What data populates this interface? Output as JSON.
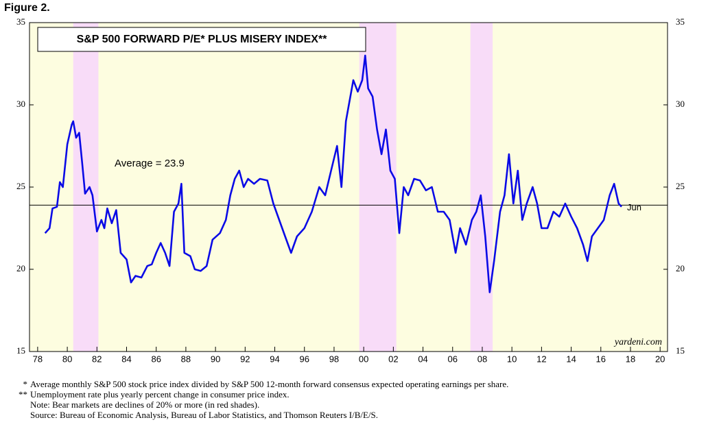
{
  "figure_label": "Figure 2.",
  "chart_data": {
    "type": "line",
    "title": "S&P 500 FORWARD P/E* PLUS MISERY INDEX**",
    "x": [
      1978.5,
      1978.8,
      1979.0,
      1979.3,
      1979.5,
      1979.7,
      1980.0,
      1980.3,
      1980.4,
      1980.6,
      1980.8,
      1981.0,
      1981.2,
      1981.5,
      1981.7,
      1982.0,
      1982.3,
      1982.5,
      1982.7,
      1983.0,
      1983.3,
      1983.6,
      1984.0,
      1984.3,
      1984.6,
      1985.0,
      1985.4,
      1985.7,
      1986.0,
      1986.3,
      1986.6,
      1986.9,
      1987.2,
      1987.5,
      1987.7,
      1987.9,
      1988.3,
      1988.6,
      1989.0,
      1989.4,
      1989.8,
      1990.3,
      1990.7,
      1991.0,
      1991.3,
      1991.6,
      1991.9,
      1992.2,
      1992.6,
      1993.0,
      1993.5,
      1993.9,
      1994.3,
      1994.7,
      1995.1,
      1995.5,
      1996.0,
      1996.5,
      1997.0,
      1997.4,
      1997.8,
      1998.2,
      1998.5,
      1998.8,
      1999.0,
      1999.3,
      1999.6,
      1999.9,
      2000.1,
      2000.3,
      2000.6,
      2000.9,
      2001.2,
      2001.5,
      2001.8,
      2002.1,
      2002.4,
      2002.7,
      2003.0,
      2003.4,
      2003.8,
      2004.2,
      2004.6,
      2005.0,
      2005.4,
      2005.8,
      2006.2,
      2006.5,
      2006.9,
      2007.3,
      2007.6,
      2007.9,
      2008.2,
      2008.5,
      2008.8,
      2009.2,
      2009.5,
      2009.8,
      2010.1,
      2010.4,
      2010.7,
      2011.0,
      2011.4,
      2011.7,
      2012.0,
      2012.4,
      2012.8,
      2013.2,
      2013.6,
      2014.0,
      2014.4,
      2014.8,
      2015.1,
      2015.4,
      2015.8,
      2016.2,
      2016.6,
      2016.9,
      2017.2,
      2017.4
    ],
    "values": [
      22.2,
      22.5,
      23.7,
      23.8,
      25.3,
      25.0,
      27.6,
      28.8,
      29.0,
      28.0,
      28.3,
      26.5,
      24.6,
      25.0,
      24.5,
      22.3,
      23.0,
      22.5,
      23.7,
      22.8,
      23.6,
      21.0,
      20.6,
      19.2,
      19.6,
      19.5,
      20.2,
      20.3,
      21.0,
      21.6,
      21.0,
      20.2,
      23.5,
      24.0,
      25.2,
      21.0,
      20.8,
      20.0,
      19.9,
      20.2,
      21.8,
      22.2,
      23.0,
      24.5,
      25.5,
      26.0,
      25.0,
      25.5,
      25.2,
      25.5,
      25.4,
      24.0,
      23.0,
      22.0,
      21.0,
      22.0,
      22.5,
      23.5,
      25.0,
      24.5,
      26.0,
      27.5,
      25.0,
      29.0,
      30.0,
      31.5,
      30.8,
      31.5,
      33.0,
      31.0,
      30.5,
      28.5,
      27.0,
      28.5,
      26.0,
      25.5,
      22.2,
      25.0,
      24.5,
      25.5,
      25.4,
      24.8,
      25.0,
      23.5,
      23.5,
      23.0,
      21.0,
      22.5,
      21.5,
      23.0,
      23.5,
      24.5,
      22.0,
      18.6,
      20.5,
      23.5,
      24.5,
      27.0,
      24.0,
      26.0,
      23.0,
      24.0,
      25.0,
      24.0,
      22.5,
      22.5,
      23.5,
      23.2,
      24.0,
      23.2,
      22.5,
      21.5,
      20.5,
      22.0,
      22.5,
      23.0,
      24.5,
      25.2,
      24.0,
      23.8
    ],
    "color": "#0a0ae6",
    "xlim": [
      1977.45,
      2020.5
    ],
    "xticks": [
      {
        "value": 1978,
        "label": "78"
      },
      {
        "value": 1980,
        "label": "80"
      },
      {
        "value": 1982,
        "label": "82"
      },
      {
        "value": 1984,
        "label": "84"
      },
      {
        "value": 1986,
        "label": "86"
      },
      {
        "value": 1988,
        "label": "88"
      },
      {
        "value": 1990,
        "label": "90"
      },
      {
        "value": 1992,
        "label": "92"
      },
      {
        "value": 1994,
        "label": "94"
      },
      {
        "value": 1996,
        "label": "96"
      },
      {
        "value": 1998,
        "label": "98"
      },
      {
        "value": 2000,
        "label": "00"
      },
      {
        "value": 2002,
        "label": "02"
      },
      {
        "value": 2004,
        "label": "04"
      },
      {
        "value": 2006,
        "label": "06"
      },
      {
        "value": 2008,
        "label": "08"
      },
      {
        "value": 2010,
        "label": "10"
      },
      {
        "value": 2012,
        "label": "12"
      },
      {
        "value": 2014,
        "label": "14"
      },
      {
        "value": 2016,
        "label": "16"
      },
      {
        "value": 2018,
        "label": "18"
      },
      {
        "value": 2020,
        "label": "20"
      }
    ],
    "ylim": [
      15,
      35
    ],
    "yticks": [
      15,
      20,
      25,
      30,
      35
    ],
    "y2lim": [
      15,
      35
    ],
    "y2ticks": [
      15,
      20,
      25,
      30,
      35
    ],
    "average": {
      "value": 23.9,
      "label": "Average = 23.9"
    },
    "last_label": "Jun",
    "shaded_regions": [
      [
        1980.4,
        1982.1
      ],
      [
        1999.7,
        2002.2
      ],
      [
        2007.2,
        2008.7
      ]
    ],
    "shade_color": "#f8dcf8",
    "background_color": "#fdfde0",
    "watermark": "yardeni.com",
    "footnotes": [
      {
        "marker": "*",
        "text": "Average monthly S&P 500 stock price index divided by S&P 500 12-month forward consensus expected operating earnings per share."
      },
      {
        "marker": "**",
        "text": "Unemployment rate plus yearly percent change in consumer price index."
      },
      {
        "marker": null,
        "text": "Note: Bear markets are declines of 20% or more (in red shades)."
      },
      {
        "marker": null,
        "text": "Source: Bureau of Economic Analysis, Bureau of Labor Statistics, and Thomson Reuters I/B/E/S."
      }
    ]
  }
}
